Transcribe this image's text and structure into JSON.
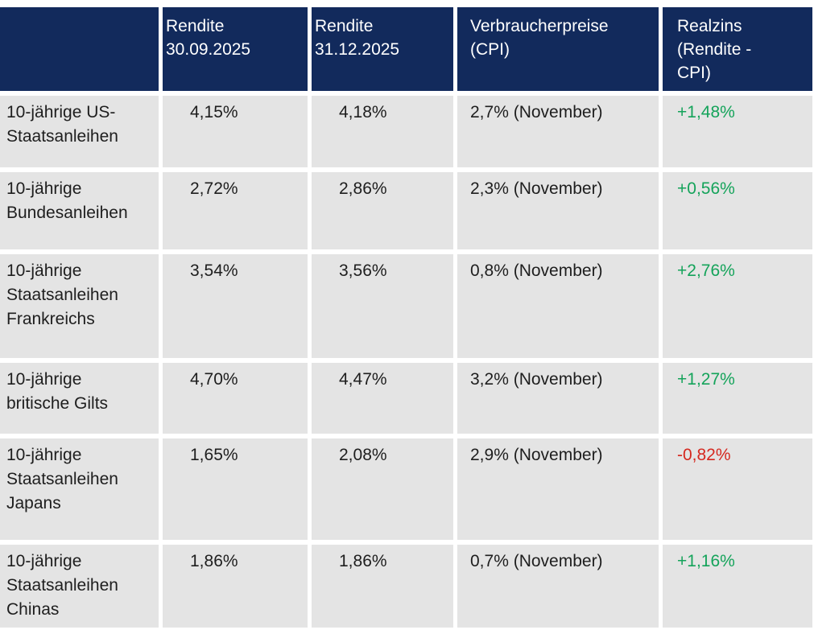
{
  "colors": {
    "header_bg": "#122a5c",
    "header_text": "#ffffff",
    "cell_bg": "#e4e4e4",
    "body_text": "#1e1e1e",
    "positive": "#14a35a",
    "negative": "#d5281f",
    "gap": "#ffffff"
  },
  "table": {
    "header": {
      "col0": "",
      "col1": "Rendite\n30.09.2025",
      "col2": "Rendite\n31.12.2025",
      "col3": "Verbraucherpreise\n(CPI)",
      "col4": "Realzins\n(Rendite -\nCPI)"
    },
    "rows": [
      {
        "label": "10-jährige US-\nStaatsanleihen",
        "rendite_3009": "4,15%",
        "rendite_3112": "4,18%",
        "cpi": "2,7% (November)",
        "realzins": "+1,48%",
        "realzins_color": "#14a35a"
      },
      {
        "label": "10-jährige\nBundesanleihen",
        "rendite_3009": "2,72%",
        "rendite_3112": "2,86%",
        "cpi": "2,3% (November)",
        "realzins": "+0,56%",
        "realzins_color": "#14a35a"
      },
      {
        "label": "10-jährige\nStaatsanleihen\nFrankreichs",
        "rendite_3009": "3,54%",
        "rendite_3112": "3,56%",
        "cpi": "0,8% (November)",
        "realzins": "+2,76%",
        "realzins_color": "#14a35a"
      },
      {
        "label": "10-jährige\nbritische Gilts",
        "rendite_3009": "4,70%",
        "rendite_3112": "4,47%",
        "cpi": "3,2% (November)",
        "realzins": "+1,27%",
        "realzins_color": "#14a35a"
      },
      {
        "label": "10-jährige\nStaatsanleihen\nJapans",
        "rendite_3009": "1,65%",
        "rendite_3112": "2,08%",
        "cpi": "2,9% (November)",
        "realzins": "-0,82%",
        "realzins_color": "#d5281f"
      },
      {
        "label": "10-jährige\nStaatsanleihen\nChinas",
        "rendite_3009": "1,86%",
        "rendite_3112": "1,86%",
        "cpi": "0,7% (November)",
        "realzins": "+1,16%",
        "realzins_color": "#14a35a"
      }
    ]
  },
  "chart_data": {
    "type": "table",
    "columns": [
      "",
      "Rendite 30.09.2025",
      "Rendite 31.12.2025",
      "Verbraucherpreise (CPI)",
      "Realzins (Rendite - CPI)"
    ],
    "rows": [
      [
        "10-jährige US-Staatsanleihen",
        "4,15%",
        "4,18%",
        "2,7% (November)",
        "+1,48%"
      ],
      [
        "10-jährige Bundesanleihen",
        "2,72%",
        "2,86%",
        "2,3% (November)",
        "+0,56%"
      ],
      [
        "10-jährige Staatsanleihen Frankreichs",
        "3,54%",
        "3,56%",
        "0,8% (November)",
        "+2,76%"
      ],
      [
        "10-jährige britische Gilts",
        "4,70%",
        "4,47%",
        "3,2% (November)",
        "+1,27%"
      ],
      [
        "10-jährige Staatsanleihen Japans",
        "1,65%",
        "2,08%",
        "2,9% (November)",
        "-0,82%"
      ],
      [
        "10-jährige Staatsanleihen Chinas",
        "1,86%",
        "1,86%",
        "0,7% (November)",
        "+1,16%"
      ]
    ],
    "realzins_positive_color": "#14a35a",
    "realzins_negative_color": "#d5281f"
  }
}
